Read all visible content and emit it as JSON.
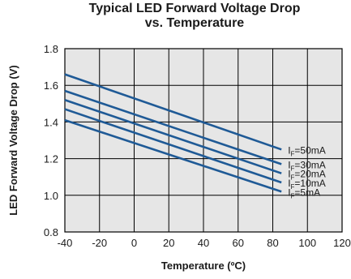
{
  "chart_data": {
    "type": "line",
    "title_line1": "Typical LED Forward Voltage Drop",
    "title_line2": "vs. Temperature",
    "xlabel": "Temperature (ºC)",
    "ylabel": "LED Forward Voltage Drop (V)",
    "xlim": [
      -40,
      120
    ],
    "ylim": [
      0.8,
      1.8
    ],
    "x_ticks": [
      -40,
      -20,
      0,
      20,
      40,
      60,
      80,
      100,
      120
    ],
    "x_tick_labels": [
      "-40",
      "-20",
      "0",
      "20",
      "40",
      "60",
      "80",
      "100",
      "120"
    ],
    "y_ticks": [
      0.8,
      1.0,
      1.2,
      1.4,
      1.6,
      1.8
    ],
    "y_tick_labels": [
      "0.8",
      "1.0",
      "1.2",
      "1.4",
      "1.6",
      "1.8"
    ],
    "grid": true,
    "plot_background": "#e6e6e6",
    "grid_color": "#000000",
    "line_color": "#1f5a96",
    "series": [
      {
        "name": "IF=50mA",
        "label_main": "I",
        "label_sub": "F",
        "label_rest": "=50mA",
        "x": [
          -40,
          85
        ],
        "y": [
          1.66,
          1.25
        ]
      },
      {
        "name": "IF=30mA",
        "label_main": "I",
        "label_sub": "F",
        "label_rest": "=30mA",
        "x": [
          -40,
          85
        ],
        "y": [
          1.57,
          1.17
        ]
      },
      {
        "name": "IF=20mA",
        "label_main": "I",
        "label_sub": "F",
        "label_rest": "=20mA",
        "x": [
          -40,
          85
        ],
        "y": [
          1.52,
          1.12
        ]
      },
      {
        "name": "IF=10mA",
        "label_main": "I",
        "label_sub": "F",
        "label_rest": "=10mA",
        "x": [
          -40,
          85
        ],
        "y": [
          1.47,
          1.07
        ]
      },
      {
        "name": "IF=5mA",
        "label_main": "I",
        "label_sub": "F",
        "label_rest": "=5mA",
        "x": [
          -40,
          85
        ],
        "y": [
          1.41,
          1.02
        ]
      }
    ]
  }
}
